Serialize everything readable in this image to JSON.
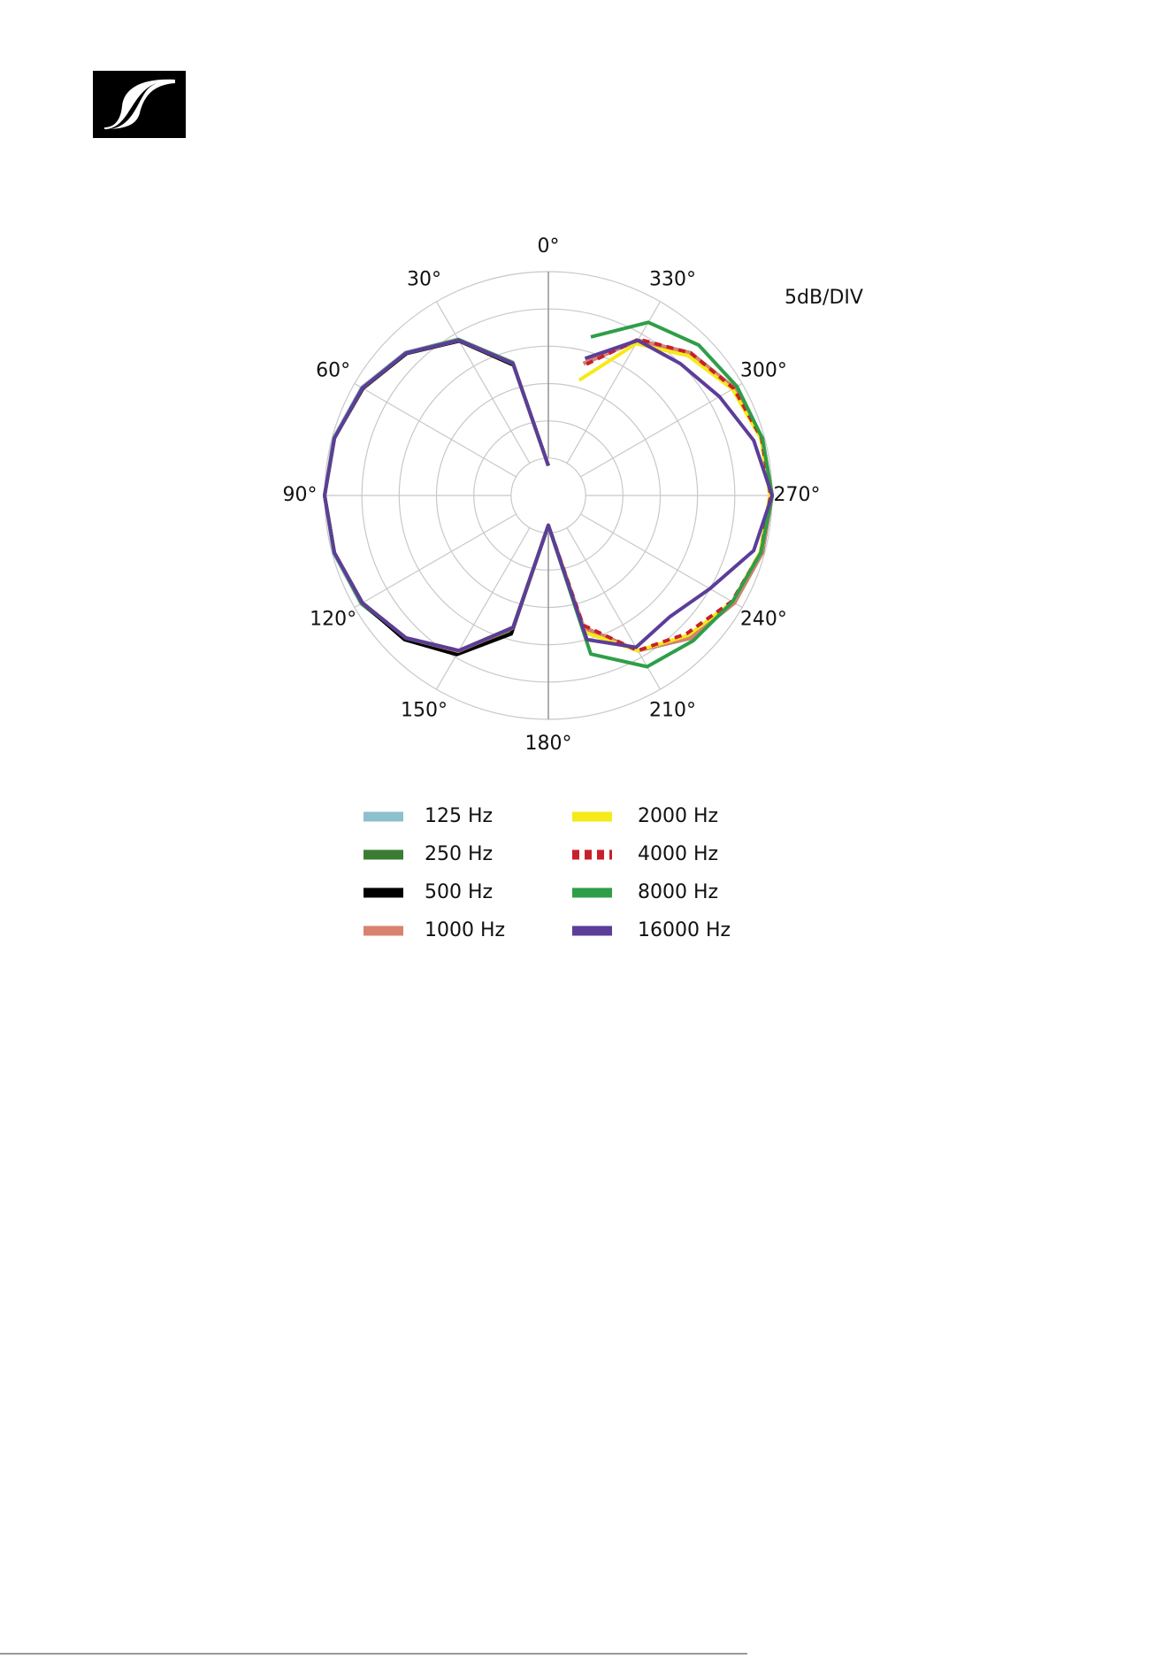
{
  "chart_data": {
    "type": "polar-line",
    "annotation": "5dB/DIV",
    "theta": [
      0,
      15,
      30,
      45,
      60,
      75,
      90,
      105,
      120,
      135,
      150,
      165,
      180,
      195,
      210,
      225,
      240,
      255,
      270,
      285,
      300,
      315,
      330,
      345
    ],
    "thetaticks": [
      {
        "value": 0,
        "label": "0°"
      },
      {
        "value": 30,
        "label": "30°"
      },
      {
        "value": 60,
        "label": "60°"
      },
      {
        "value": 90,
        "label": "90°"
      },
      {
        "value": 120,
        "label": "120°"
      },
      {
        "value": 150,
        "label": "150°"
      },
      {
        "value": 180,
        "label": "180°"
      },
      {
        "value": 210,
        "label": "210°"
      },
      {
        "value": 240,
        "label": "240°"
      },
      {
        "value": 270,
        "label": "270°"
      },
      {
        "value": 300,
        "label": "300°"
      },
      {
        "value": 330,
        "label": "330°"
      }
    ],
    "rlim": [
      -30,
      0
    ],
    "rticks": [
      -25,
      -20,
      -15,
      -10,
      -5,
      0
    ],
    "grid": true,
    "legend": "bottom",
    "series": [
      {
        "name": "125 Hz",
        "color": "#8cc0cc",
        "values": [
          -26,
          -11.5,
          -5.8,
          -2.9,
          -1.1,
          -0.2,
          0,
          -0.2,
          -1.0,
          -2.9,
          -5.8,
          -11.5,
          -26,
          -11.7,
          -6,
          -3,
          -1.2,
          -0.3,
          0,
          -0.3,
          -1.2,
          -3,
          -6,
          -11.7
        ]
      },
      {
        "name": "250 Hz",
        "color": "#3a7d32",
        "values": [
          -26,
          -11.6,
          -5.9,
          -3,
          -1.2,
          -0.3,
          0,
          -0.3,
          -1.1,
          -2.8,
          -5.6,
          -11.4,
          -26,
          -11.7,
          -6,
          -3,
          -1.2,
          -0.3,
          0,
          -0.3,
          -1.2,
          -3,
          -6,
          -11.7
        ]
      },
      {
        "name": "500 Hz",
        "color": "#000000",
        "values": [
          -26,
          -11.9,
          -6.1,
          -3.1,
          -1.3,
          -0.3,
          0,
          -0.3,
          -1.2,
          -2.7,
          -5.4,
          -10.8,
          -26,
          -11.7,
          -6,
          -3,
          -1.2,
          -0.3,
          0,
          -0.3,
          -1.2,
          -3,
          -6,
          -11.7
        ]
      },
      {
        "name": "1000 Hz",
        "color": "#d9826f",
        "values": [
          -26,
          -11.7,
          -6,
          -3,
          -1.2,
          -0.3,
          0,
          -0.3,
          -1.2,
          -3,
          -5.9,
          -11.6,
          -26,
          -11.7,
          -6,
          -3,
          -1.2,
          -0.3,
          0,
          -0.3,
          -1.2,
          -3,
          -6,
          -11.7
        ]
      },
      {
        "name": "2000 Hz",
        "color": "#f5ea1a",
        "values": [
          -26,
          -11.7,
          -6,
          -3,
          -1.2,
          -0.3,
          0,
          -0.3,
          -1.2,
          -3,
          -6,
          -11.7,
          -26,
          -11,
          -6,
          -3.5,
          -1.5,
          -0.6,
          -0.3,
          -0.5,
          -1.5,
          -3.5,
          -6.5,
          -14
        ]
      },
      {
        "name": "4000 Hz",
        "color": "#c8202a",
        "dash": true,
        "values": [
          -26,
          -11.7,
          -6,
          -3,
          -1.2,
          -0.3,
          0,
          -0.3,
          -1.2,
          -3,
          -6,
          -11.7,
          -26,
          -12,
          -6,
          -3.8,
          -1.6,
          -0.5,
          -0.2,
          -0.4,
          -1.3,
          -3,
          -5.8,
          -12
        ]
      },
      {
        "name": "8000 Hz",
        "color": "#2f9e48",
        "values": [
          -26,
          -11.7,
          -6,
          -3,
          -1.2,
          -0.3,
          0,
          -0.3,
          -1.2,
          -3,
          -6,
          -11.7,
          -26,
          -8,
          -3.5,
          -2.5,
          -1.5,
          -0.5,
          0,
          -0.3,
          -0.8,
          -1.5,
          -3.2,
          -8
        ]
      },
      {
        "name": "16000 Hz",
        "color": "#5c3d99",
        "values": [
          -26,
          -11.7,
          -6,
          -3,
          -1.2,
          -0.3,
          0,
          -0.3,
          -1.2,
          -3,
          -6,
          -11.7,
          -26,
          -10,
          -6.5,
          -7,
          -5,
          -1.5,
          0,
          -1.5,
          -3.5,
          -5,
          -6,
          -11
        ]
      }
    ]
  }
}
